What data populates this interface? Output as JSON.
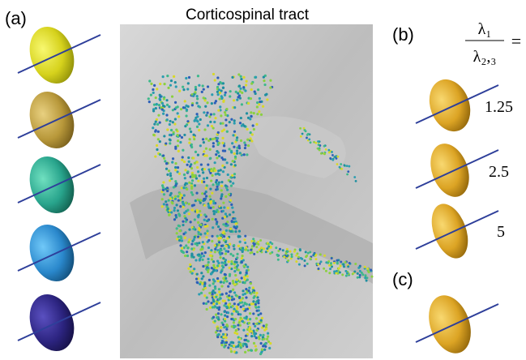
{
  "figure": {
    "title": "Corticospinal tract",
    "panels": {
      "a": "(a)",
      "b": "(b)",
      "c": "(c)"
    },
    "ratio": {
      "numerator": "λ₁",
      "denominator": "λ₂,₃",
      "equals": "="
    },
    "ratio_values": [
      "1.25",
      "2.5",
      "5"
    ]
  }
}
